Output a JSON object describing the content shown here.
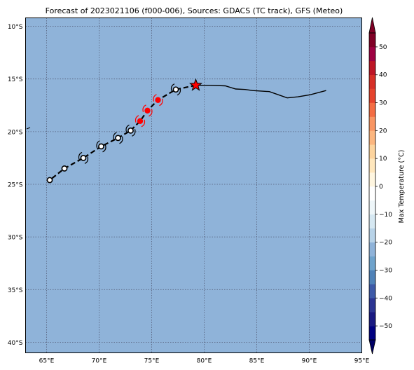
{
  "title": "Forecast of 2023021106 (f000-006), Sources: GDACS (TC track), GFS (Meteo)",
  "map": {
    "lon_range": [
      63,
      95
    ],
    "lat_range": [
      -41,
      -9.2
    ],
    "ocean_color": "#8fb3d9",
    "grid": "dotted",
    "x_ticks": [
      {
        "value": 65,
        "label": "65°E"
      },
      {
        "value": 70,
        "label": "70°E"
      },
      {
        "value": 75,
        "label": "75°E"
      },
      {
        "value": 80,
        "label": "80°E"
      },
      {
        "value": 85,
        "label": "85°E"
      },
      {
        "value": 90,
        "label": "90°E"
      },
      {
        "value": 95,
        "label": "95°E"
      }
    ],
    "y_ticks": [
      {
        "value": -10,
        "label": "10°S"
      },
      {
        "value": -15,
        "label": "15°S"
      },
      {
        "value": -20,
        "label": "20°S"
      },
      {
        "value": -25,
        "label": "25°S"
      },
      {
        "value": -30,
        "label": "30°S"
      },
      {
        "value": -35,
        "label": "35°S"
      },
      {
        "value": -40,
        "label": "40°S"
      }
    ]
  },
  "track": {
    "observed": [
      [
        91.6,
        -16.1
      ],
      [
        90.1,
        -16.5
      ],
      [
        88.9,
        -16.7
      ],
      [
        87.9,
        -16.8
      ],
      [
        86.2,
        -16.2
      ],
      [
        84.6,
        -16.1
      ],
      [
        83.9,
        -16.0
      ],
      [
        83.0,
        -15.95
      ],
      [
        82.0,
        -15.65
      ],
      [
        80.5,
        -15.6
      ],
      [
        79.2,
        -15.6
      ]
    ],
    "current": [
      79.2,
      -15.6
    ],
    "forecast_line": [
      [
        79.2,
        -15.6
      ],
      [
        77.3,
        -16.0
      ],
      [
        75.6,
        -17.0
      ],
      [
        74.6,
        -18.0
      ],
      [
        73.9,
        -19.0
      ],
      [
        73.0,
        -19.9
      ],
      [
        71.8,
        -20.6
      ],
      [
        70.2,
        -21.4
      ],
      [
        68.5,
        -22.5
      ],
      [
        66.7,
        -23.5
      ],
      [
        65.3,
        -24.6
      ]
    ],
    "forecast_points": [
      {
        "lon": 77.3,
        "lat": -16.0,
        "color": "#ffffff",
        "symbol": "black"
      },
      {
        "lon": 75.6,
        "lat": -17.0,
        "color": "#ff0000",
        "symbol": "red"
      },
      {
        "lon": 74.6,
        "lat": -18.0,
        "color": "#ff0000",
        "symbol": "red"
      },
      {
        "lon": 73.9,
        "lat": -19.0,
        "color": "#ff0000",
        "symbol": "red"
      },
      {
        "lon": 73.0,
        "lat": -19.9,
        "color": "#ffffff",
        "symbol": "black"
      },
      {
        "lon": 71.8,
        "lat": -20.6,
        "color": "#ffffff",
        "symbol": "black"
      },
      {
        "lon": 70.2,
        "lat": -21.4,
        "color": "#ffffff",
        "symbol": "black"
      },
      {
        "lon": 68.5,
        "lat": -22.5,
        "color": "#ffffff",
        "symbol": "black"
      },
      {
        "lon": 66.7,
        "lat": -23.5,
        "color": "#ffffff",
        "symbol": "none"
      },
      {
        "lon": 65.3,
        "lat": -24.6,
        "color": "#ffffff",
        "symbol": "none"
      }
    ]
  },
  "colorbar": {
    "label": "Max Temperature (°C)",
    "min": -55,
    "max": 55,
    "levels": [
      -50,
      -40,
      -30,
      -20,
      -10,
      0,
      10,
      20,
      30,
      40,
      50
    ],
    "tick_labels": [
      "−50",
      "−40",
      "−30",
      "−20",
      "−10",
      "0",
      "10",
      "20",
      "30",
      "40",
      "50"
    ],
    "colors": [
      "#000080",
      "#1a1a82",
      "#2c3593",
      "#3e5aa8",
      "#4f82b8",
      "#6fa3cc",
      "#8fb3d9",
      "#b8d3e8",
      "#d6e8f2",
      "#eef6f9",
      "#ffffff",
      "#fff6e0",
      "#ffe7bd",
      "#fdd49e",
      "#fcb67f",
      "#f99663",
      "#f46d43",
      "#e5432d",
      "#d62f27",
      "#bd1526",
      "#9e0142",
      "#800026"
    ],
    "extend_low_color": "#000066",
    "extend_high_color": "#800026"
  }
}
